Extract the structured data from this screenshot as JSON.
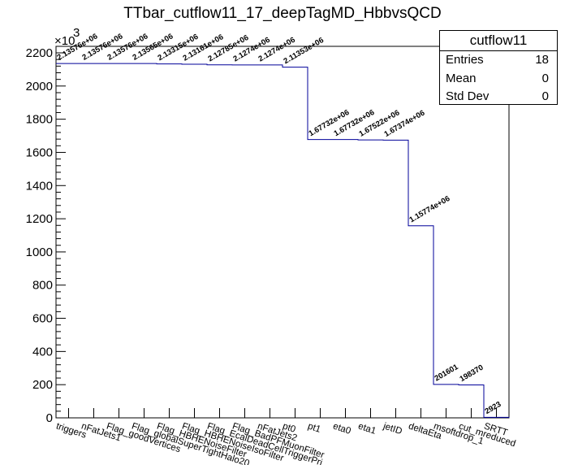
{
  "title": "TTbar_cutflow11_17_deepTagMD_HbbvsQCD",
  "stats": {
    "name": "cutflow11",
    "rows": [
      {
        "label": "Entries",
        "value": "18"
      },
      {
        "label": "Mean",
        "value": "0"
      },
      {
        "label": "Std Dev",
        "value": "0"
      }
    ]
  },
  "chart_data": {
    "type": "bar",
    "title": "TTbar_cutflow11_17_deepTagMD_HbbvsQCD",
    "xlabel": "",
    "ylabel": "",
    "y_exponent_label": "×10",
    "y_exponent_power": "3",
    "ylim": [
      0,
      2236
    ],
    "yticks": [
      0,
      200,
      400,
      600,
      800,
      1000,
      1200,
      1400,
      1600,
      1800,
      2000,
      2200
    ],
    "categories": [
      "triggers",
      "nFatJets1",
      "Flag_goodVertices",
      "Flag_globalSuperTightHalo2016Filter",
      "Flag_HBHENoiseFilter",
      "Flag_HBHENoiseIsoFilter",
      "Flag_EcalDeadCellTriggerPrimitiveFilter",
      "Flag_BadPFMuonFilter",
      "nFatJets2",
      "pt0",
      "pt1",
      "eta0",
      "eta1",
      "jetID",
      "deltaEta",
      "msoftdrop_1",
      "cut_mreduced",
      "SRTT"
    ],
    "category_display": [
      "triggers",
      "nFatJets1",
      "Flag_goodVertices",
      "Flag_globalSuperTightHalo20",
      "Flag_HBHENoiseFilter",
      "Flag_HBHENoiseIsoFilter",
      "Flag_EcalDeadCellTriggerPri",
      "Flag_BadPFMuonFilter",
      "nFatJets2",
      "pt0",
      "pt1",
      "eta0",
      "eta1",
      "jetID",
      "deltaEta",
      "msoftdrop_1",
      "cut_mreduced",
      "SRTT"
    ],
    "values": [
      2135.76,
      2135.76,
      2135.76,
      2135.65,
      2133.15,
      2131.61,
      2127.85,
      2127.4,
      2127.4,
      2113.53,
      1677.32,
      1677.32,
      1675.22,
      1673.74,
      1157.74,
      201.601,
      198.37,
      2.923
    ],
    "value_labels": [
      "2.13576e+06",
      "2.13576e+06",
      "2.13576e+06",
      "2.13565e+06",
      "2.13315e+06",
      "2.13161e+06",
      "2.12785e+06",
      "2.1274e+06",
      "2.1274e+06",
      "2.11353e+06",
      "1.67732e+06",
      "1.67732e+06",
      "1.67522e+06",
      "1.67374e+06",
      "1.15774e+06",
      "201601",
      "198370",
      "2923"
    ],
    "line_color": "#000099",
    "grid": false,
    "legend": "top-right"
  }
}
